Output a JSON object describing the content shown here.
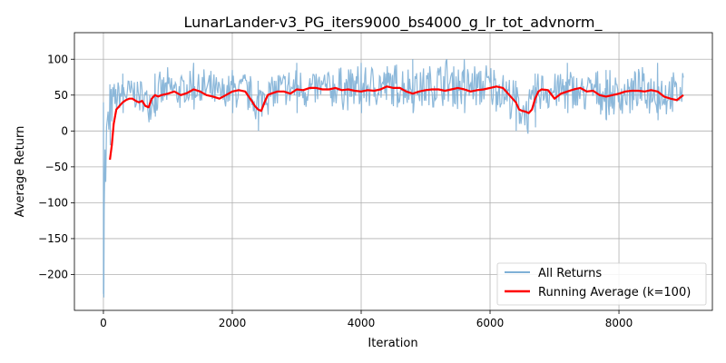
{
  "chart_data": {
    "type": "line",
    "title": "LunarLander-v3_PG_iters9000_bs4000_g_lr_tot_advnorm_",
    "xlabel": "Iteration",
    "ylabel": "Average Return",
    "xlim": [
      -450,
      9450
    ],
    "ylim": [
      -250,
      137
    ],
    "xticks": [
      0,
      2000,
      4000,
      6000,
      8000
    ],
    "yticks": [
      -200,
      -150,
      -100,
      -50,
      0,
      50,
      100
    ],
    "grid": true,
    "legend_position": "lower-right",
    "series": [
      {
        "name": "All Returns",
        "color": "#7fb0d6",
        "kind": "raw",
        "band": {
          "x": [
            0,
            30,
            60,
            100,
            150,
            200,
            300,
            500,
            700,
            800,
            1000,
            1200,
            1400,
            1600,
            1800,
            2000,
            2200,
            2300,
            2400,
            2500,
            2700,
            3000,
            3300,
            3600,
            4000,
            4300,
            4500,
            4800,
            5000,
            5300,
            5600,
            6000,
            6200,
            6400,
            6500,
            6600,
            6700,
            6800,
            7000,
            7200,
            7400,
            7600,
            7800,
            8000,
            8300,
            8600,
            8800,
            9000
          ],
          "low": [
            -232,
            -150,
            -60,
            -20,
            10,
            15,
            25,
            25,
            10,
            20,
            25,
            25,
            30,
            25,
            20,
            25,
            25,
            15,
            0,
            20,
            20,
            25,
            25,
            25,
            25,
            25,
            25,
            25,
            25,
            25,
            25,
            25,
            20,
            0,
            -5,
            -10,
            5,
            25,
            20,
            25,
            20,
            25,
            15,
            15,
            20,
            15,
            15,
            20
          ],
          "high": [
            40,
            40,
            55,
            65,
            70,
            75,
            80,
            80,
            70,
            80,
            90,
            85,
            95,
            90,
            80,
            85,
            90,
            80,
            70,
            85,
            90,
            95,
            90,
            95,
            95,
            100,
            100,
            100,
            95,
            110,
            100,
            100,
            95,
            70,
            65,
            60,
            80,
            95,
            90,
            95,
            85,
            90,
            85,
            85,
            90,
            95,
            85,
            85
          ]
        }
      },
      {
        "name": "Running Average (k=100)",
        "color": "#ff0000",
        "kind": "line",
        "x": [
          100,
          130,
          160,
          200,
          250,
          300,
          350,
          400,
          450,
          500,
          550,
          600,
          650,
          700,
          750,
          800,
          850,
          900,
          1000,
          1100,
          1200,
          1300,
          1400,
          1500,
          1600,
          1700,
          1800,
          1900,
          2000,
          2100,
          2200,
          2300,
          2350,
          2400,
          2450,
          2500,
          2550,
          2600,
          2700,
          2800,
          2900,
          3000,
          3100,
          3200,
          3300,
          3400,
          3500,
          3600,
          3700,
          3800,
          3900,
          4000,
          4100,
          4200,
          4300,
          4400,
          4500,
          4600,
          4700,
          4800,
          4900,
          5000,
          5100,
          5200,
          5300,
          5400,
          5500,
          5600,
          5700,
          5800,
          5900,
          6000,
          6100,
          6200,
          6300,
          6400,
          6450,
          6500,
          6550,
          6600,
          6650,
          6700,
          6750,
          6800,
          6900,
          7000,
          7100,
          7200,
          7300,
          7400,
          7500,
          7600,
          7700,
          7800,
          7900,
          8000,
          8100,
          8200,
          8300,
          8400,
          8500,
          8600,
          8700,
          8800,
          8900,
          9000
        ],
        "y": [
          -40,
          -20,
          10,
          30,
          35,
          40,
          43,
          45,
          45,
          42,
          40,
          42,
          35,
          33,
          45,
          50,
          48,
          50,
          52,
          55,
          50,
          53,
          58,
          55,
          50,
          48,
          45,
          50,
          55,
          57,
          55,
          42,
          35,
          30,
          28,
          40,
          50,
          52,
          55,
          55,
          52,
          58,
          57,
          60,
          60,
          58,
          58,
          60,
          57,
          58,
          56,
          55,
          57,
          56,
          58,
          62,
          60,
          60,
          55,
          52,
          55,
          57,
          58,
          58,
          56,
          58,
          60,
          58,
          55,
          57,
          58,
          60,
          62,
          60,
          50,
          40,
          30,
          28,
          27,
          25,
          30,
          45,
          55,
          58,
          57,
          45,
          52,
          55,
          58,
          60,
          55,
          56,
          50,
          48,
          50,
          52,
          55,
          56,
          56,
          55,
          57,
          55,
          48,
          45,
          43,
          50
        ]
      }
    ]
  }
}
